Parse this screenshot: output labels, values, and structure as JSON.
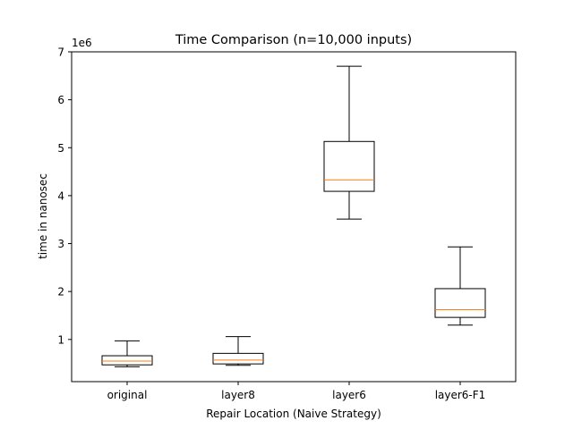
{
  "chart_data": {
    "type": "box",
    "title": "Time Comparison (n=10,000 inputs)",
    "xlabel": "Repair Location (Naive Strategy)",
    "ylabel": "time in nanosec",
    "y_offset_label": "1e6",
    "y_multiplier": 1000000,
    "ylim": [
      0.12,
      7.0
    ],
    "yticks": [
      1,
      2,
      3,
      4,
      5,
      6,
      7
    ],
    "grid": false,
    "categories": [
      "original",
      "layer8",
      "layer6",
      "layer6-F1"
    ],
    "boxes": [
      {
        "category": "original",
        "whisker_low": 0.43,
        "q1": 0.47,
        "median": 0.55,
        "q3": 0.66,
        "whisker_high": 0.97
      },
      {
        "category": "layer8",
        "whisker_low": 0.46,
        "q1": 0.49,
        "median": 0.57,
        "q3": 0.71,
        "whisker_high": 1.06
      },
      {
        "category": "layer6",
        "whisker_low": 3.51,
        "q1": 4.09,
        "median": 4.33,
        "q3": 5.13,
        "whisker_high": 6.7
      },
      {
        "category": "layer6-F1",
        "whisker_low": 1.3,
        "q1": 1.46,
        "median": 1.62,
        "q3": 2.06,
        "whisker_high": 2.93
      }
    ],
    "colors": {
      "box": "#000000",
      "median": "#ff7f0e"
    }
  }
}
